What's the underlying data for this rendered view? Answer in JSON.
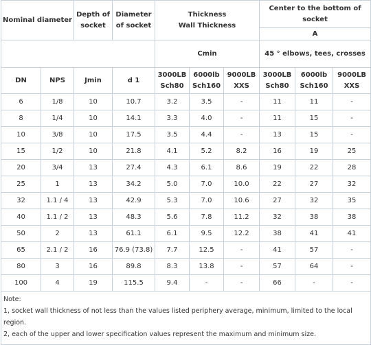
{
  "header": {
    "nominal_diameter": "Nominal diameter",
    "depth_of_socket": "Depth of\nsocket",
    "diameter_of_socket": "Diameter\nof socket",
    "thickness": "Thickness\nWall Thickness",
    "center_to_bottom": "Center to the bottom of\nsocket",
    "a": "A",
    "cmin": "Cmin",
    "fittings": "45 ° elbows, tees, crosses"
  },
  "table": {
    "columns": [
      "DN",
      "NPS",
      "Jmin",
      "d 1",
      "3000LB\nSch80",
      "6000lb\nSch160",
      "9000LB\nXXS",
      "3000LB\nSch80",
      "6000lb\nSch160",
      "9000LB\nXXS"
    ],
    "rows": [
      [
        "6",
        "1/8",
        "10",
        "10.7",
        "3.2",
        "3.5",
        "-",
        "11",
        "11",
        "-"
      ],
      [
        "8",
        "1/4",
        "10",
        "14.1",
        "3.3",
        "4.0",
        "-",
        "11",
        "15",
        "-"
      ],
      [
        "10",
        "3/8",
        "10",
        "17.5",
        "3.5",
        "4.4",
        "-",
        "13",
        "15",
        "-"
      ],
      [
        "15",
        "1/2",
        "10",
        "21.8",
        "4.1",
        "5.2",
        "8.2",
        "16",
        "19",
        "25"
      ],
      [
        "20",
        "3/4",
        "13",
        "27.4",
        "4.3",
        "6.1",
        "8.6",
        "19",
        "22",
        "28"
      ],
      [
        "25",
        "1",
        "13",
        "34.2",
        "5.0",
        "7.0",
        "10.0",
        "22",
        "27",
        "32"
      ],
      [
        "32",
        "1.1 / 4",
        "13",
        "42.9",
        "5.3",
        "7.0",
        "10.6",
        "27",
        "32",
        "35"
      ],
      [
        "40",
        "1.1 / 2",
        "13",
        "48.3",
        "5.6",
        "7.8",
        "11.2",
        "32",
        "38",
        "38"
      ],
      [
        "50",
        "2",
        "13",
        "61.1",
        "6.1",
        "9.5",
        "12.2",
        "38",
        "41",
        "41"
      ],
      [
        "65",
        "2.1 / 2",
        "16",
        "76.9 (73.8)",
        "7.7",
        "12.5",
        "-",
        "41",
        "57",
        "-"
      ],
      [
        "80",
        "3",
        "16",
        "89.8",
        "8.3",
        "13.8",
        "-",
        "57",
        "64",
        "-"
      ],
      [
        "100",
        "4",
        "19",
        "115.5",
        "9.4",
        "-",
        "-",
        "66",
        "-",
        "-"
      ]
    ]
  },
  "notes": [
    "Note:",
    "1, socket wall thickness of not less than the values listed periphery average, minimum, limited to the local region.",
    "2, each of the upper and lower specification values represent the maximum and minimum size."
  ]
}
